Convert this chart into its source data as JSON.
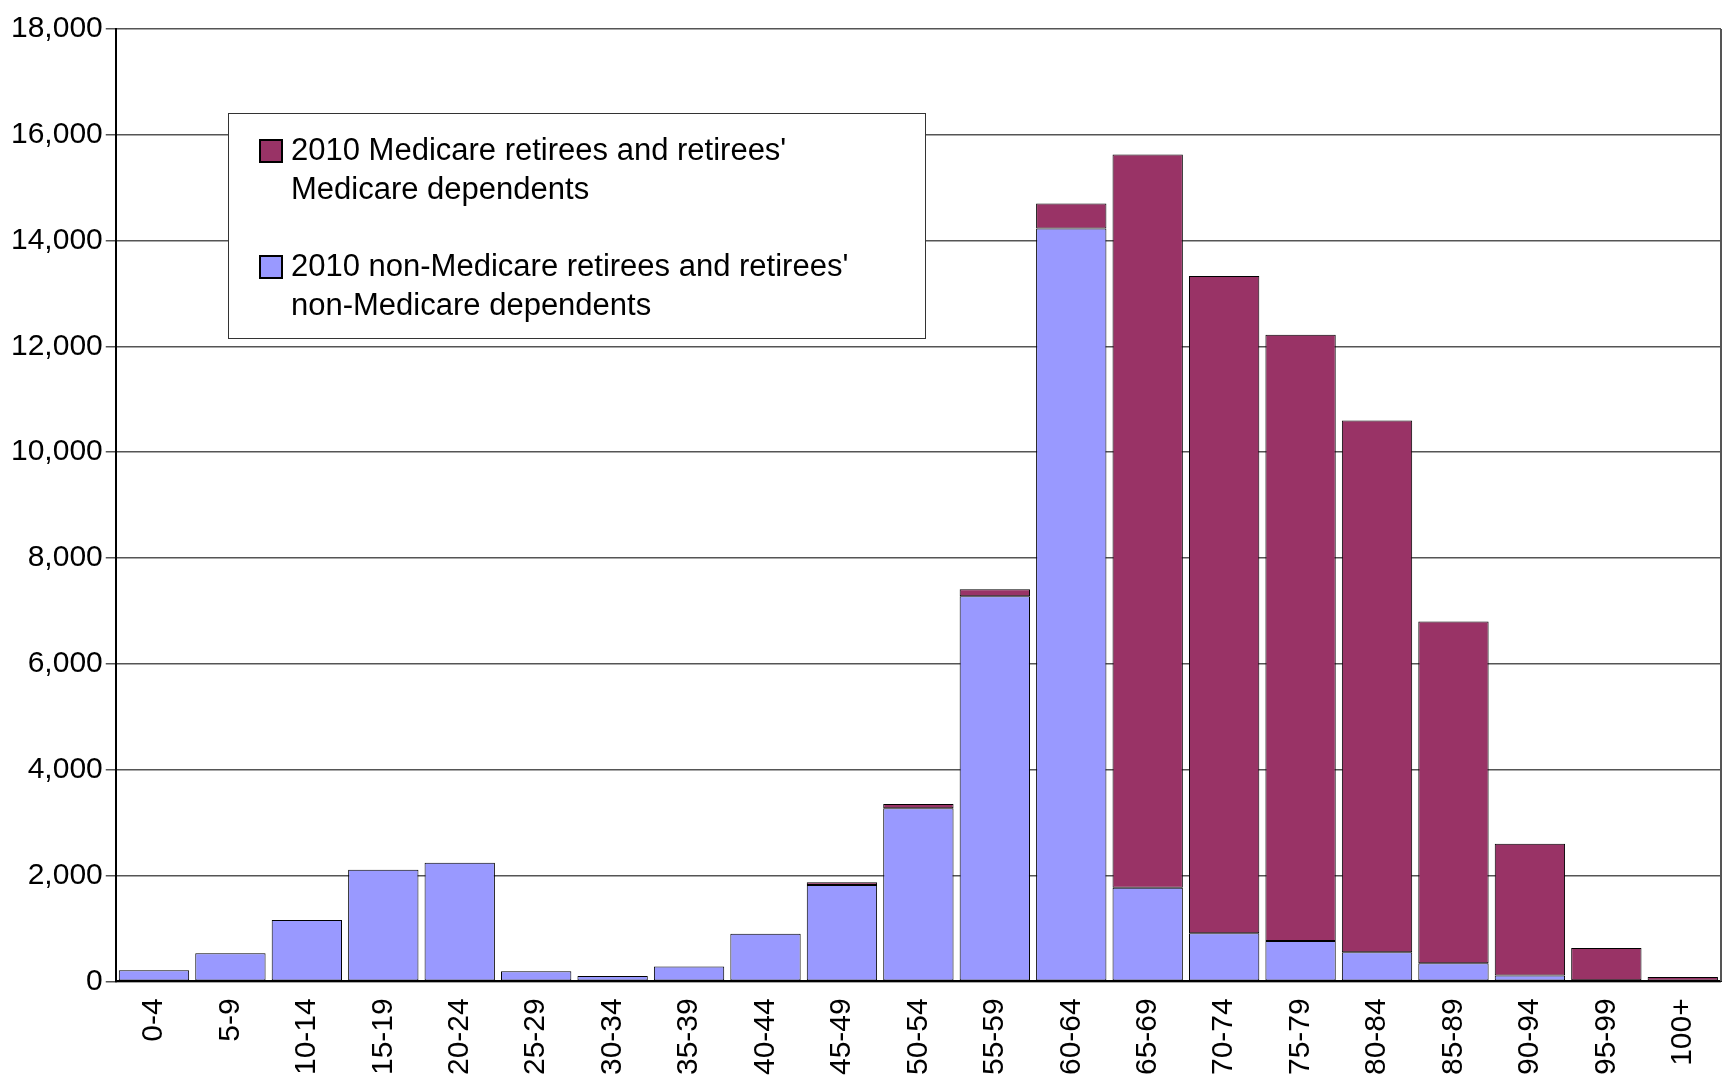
{
  "chart_data": {
    "type": "bar",
    "stacked": true,
    "categories": [
      "0-4",
      "5-9",
      "10-14",
      "15-19",
      "20-24",
      "25-29",
      "30-34",
      "35-39",
      "40-44",
      "45-49",
      "50-54",
      "55-59",
      "60-64",
      "65-69",
      "70-74",
      "75-79",
      "80-84",
      "85-89",
      "90-94",
      "95-99",
      "100+"
    ],
    "series": [
      {
        "name": "2010 non-Medicare retirees and retirees' non-Medicare dependents",
        "color": "#9999ff",
        "values": [
          210,
          530,
          1160,
          2110,
          2240,
          190,
          100,
          280,
          900,
          1820,
          3270,
          7280,
          14230,
          1770,
          910,
          760,
          550,
          340,
          110,
          20,
          0
        ]
      },
      {
        "name": "2010 Medicare retirees and retirees' Medicare dependents",
        "color": "#993366",
        "values": [
          0,
          0,
          0,
          0,
          0,
          0,
          0,
          0,
          0,
          50,
          80,
          130,
          470,
          13860,
          12420,
          11460,
          10050,
          6460,
          2490,
          610,
          80
        ]
      }
    ],
    "ylim": [
      0,
      18000
    ],
    "yticks": [
      {
        "value": 0,
        "label": "0"
      },
      {
        "value": 2000,
        "label": "2,000"
      },
      {
        "value": 4000,
        "label": "4,000"
      },
      {
        "value": 6000,
        "label": "6,000"
      },
      {
        "value": 8000,
        "label": "8,000"
      },
      {
        "value": 10000,
        "label": "10,000"
      },
      {
        "value": 12000,
        "label": "12,000"
      },
      {
        "value": 14000,
        "label": "14,000"
      },
      {
        "value": 16000,
        "label": "16,000"
      },
      {
        "value": 18000,
        "label": "18,000"
      }
    ],
    "grid": "y",
    "legend": "top left"
  }
}
